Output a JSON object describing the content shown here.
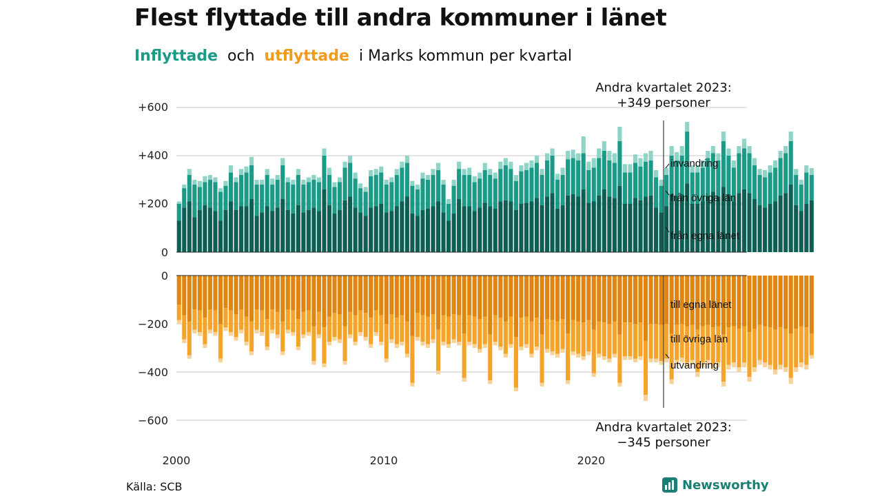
{
  "header": {
    "title": "Flest flyttade till andra kommuner i länet",
    "subtitle_in": "Inflyttade",
    "subtitle_and": "och",
    "subtitle_out": "utflyttade",
    "subtitle_rest": "i Marks kommun per kvartal"
  },
  "footer": {
    "source": "Källa: SCB",
    "brand": "Newsworthy"
  },
  "colors": {
    "in_own": "#0e5e53",
    "in_other": "#1b9a87",
    "in_immig": "#8fd4c6",
    "out_own": "#de8512",
    "out_other": "#f4a42a",
    "out_emig": "#f7d39a",
    "grid": "#dcdcdc",
    "brand": "#1a7f73"
  },
  "chart_data": {
    "type": "bar",
    "x_axis": {
      "start": "2000 Q1",
      "end": "2023 Q2",
      "ticks": [
        "2000",
        "2010",
        "2020"
      ]
    },
    "y_axis_top": {
      "ticks": [
        "+600",
        "+400",
        "+200",
        "0"
      ],
      "range": [
        0,
        600
      ]
    },
    "y_axis_bottom": {
      "ticks": [
        "0",
        "−200",
        "−400",
        "−600"
      ],
      "range": [
        -600,
        0
      ]
    },
    "annotations": {
      "top_line1": "Andra kvartalet 2023:",
      "top_line2": "+349 personer",
      "bottom_line1": "Andra kvartalet 2023:",
      "bottom_line2": "−345 personer"
    },
    "series_labels": {
      "in_immig": "invandring",
      "in_other": "från övriga län",
      "in_own": "från egna länet",
      "out_own": "till egna länet",
      "out_other": "till övriga län",
      "out_emig": "utvandring"
    },
    "in_totals": [
      210,
      280,
      345,
      300,
      295,
      315,
      320,
      310,
      265,
      295,
      360,
      310,
      345,
      355,
      395,
      300,
      300,
      345,
      305,
      320,
      390,
      310,
      300,
      345,
      300,
      310,
      320,
      310,
      430,
      350,
      290,
      310,
      375,
      400,
      330,
      285,
      270,
      340,
      345,
      355,
      300,
      310,
      345,
      375,
      400,
      295,
      280,
      330,
      320,
      345,
      370,
      300,
      220,
      300,
      375,
      345,
      350,
      315,
      330,
      370,
      345,
      330,
      375,
      390,
      375,
      320,
      360,
      370,
      380,
      400,
      345,
      410,
      430,
      325,
      350,
      420,
      425,
      410,
      480,
      375,
      390,
      430,
      460,
      420,
      410,
      520,
      365,
      365,
      405,
      390,
      410,
      420,
      340,
      300,
      350,
      440,
      415,
      440,
      540,
      360,
      360,
      380,
      420,
      440,
      410,
      500,
      430,
      380,
      440,
      470,
      440,
      390,
      345,
      340,
      360,
      380,
      420,
      440,
      500,
      345,
      300,
      360,
      349
    ],
    "in_other_tops": [
      200,
      265,
      320,
      280,
      270,
      290,
      300,
      290,
      250,
      275,
      330,
      290,
      320,
      330,
      360,
      280,
      280,
      320,
      280,
      300,
      360,
      290,
      280,
      320,
      280,
      290,
      300,
      290,
      400,
      320,
      270,
      290,
      350,
      370,
      305,
      265,
      250,
      315,
      320,
      330,
      280,
      290,
      320,
      350,
      370,
      275,
      260,
      305,
      300,
      320,
      340,
      280,
      200,
      275,
      345,
      320,
      320,
      290,
      305,
      340,
      320,
      305,
      345,
      360,
      345,
      295,
      335,
      340,
      350,
      370,
      320,
      380,
      400,
      300,
      320,
      385,
      390,
      380,
      410,
      340,
      350,
      390,
      420,
      380,
      370,
      460,
      330,
      330,
      370,
      355,
      375,
      380,
      310,
      275,
      320,
      400,
      380,
      400,
      500,
      330,
      330,
      350,
      390,
      410,
      380,
      460,
      400,
      350,
      410,
      430,
      410,
      360,
      320,
      310,
      330,
      350,
      390,
      410,
      460,
      320,
      280,
      330,
      320
    ],
    "in_own_values": [
      130,
      185,
      210,
      145,
      175,
      195,
      185,
      170,
      130,
      175,
      210,
      175,
      190,
      190,
      220,
      150,
      165,
      190,
      170,
      185,
      220,
      175,
      160,
      195,
      165,
      175,
      185,
      170,
      260,
      195,
      160,
      175,
      215,
      230,
      185,
      165,
      150,
      185,
      190,
      200,
      165,
      170,
      190,
      210,
      230,
      160,
      150,
      175,
      180,
      190,
      210,
      165,
      130,
      160,
      220,
      190,
      190,
      170,
      185,
      205,
      190,
      180,
      210,
      215,
      210,
      175,
      200,
      205,
      210,
      225,
      195,
      230,
      245,
      180,
      195,
      235,
      240,
      230,
      260,
      205,
      210,
      235,
      260,
      230,
      225,
      275,
      200,
      200,
      225,
      215,
      230,
      235,
      185,
      165,
      190,
      240,
      230,
      240,
      285,
      200,
      200,
      210,
      235,
      250,
      230,
      270,
      240,
      210,
      245,
      260,
      245,
      220,
      195,
      185,
      200,
      210,
      235,
      245,
      280,
      195,
      170,
      200,
      215
    ],
    "out_totals": [
      -200,
      -280,
      -345,
      -240,
      -250,
      -300,
      -240,
      -250,
      -360,
      -230,
      -250,
      -270,
      -240,
      -290,
      -330,
      -240,
      -250,
      -310,
      -240,
      -260,
      -330,
      -240,
      -250,
      -310,
      -260,
      -250,
      -370,
      -260,
      -380,
      -290,
      -270,
      -280,
      -370,
      -260,
      -290,
      -250,
      -270,
      -300,
      -250,
      -290,
      -360,
      -280,
      -300,
      -290,
      -340,
      -460,
      -270,
      -290,
      -300,
      -280,
      -410,
      -290,
      -300,
      -280,
      -290,
      -440,
      -290,
      -300,
      -320,
      -300,
      -450,
      -290,
      -310,
      -340,
      -300,
      -480,
      -310,
      -300,
      -340,
      -310,
      -460,
      -320,
      -330,
      -340,
      -320,
      -450,
      -330,
      -340,
      -350,
      -330,
      -420,
      -340,
      -350,
      -360,
      -340,
      -460,
      -350,
      -350,
      -360,
      -350,
      -520,
      -360,
      -360,
      -370,
      -360,
      -450,
      -370,
      -360,
      -380,
      -370,
      -420,
      -380,
      -370,
      -390,
      -380,
      -460,
      -390,
      -380,
      -400,
      -380,
      -440,
      -400,
      -370,
      -380,
      -390,
      -410,
      -390,
      -400,
      -450,
      -400,
      -380,
      -390,
      -345
    ],
    "out_other_bottoms": [
      -185,
      -265,
      -330,
      -225,
      -235,
      -285,
      -225,
      -235,
      -345,
      -215,
      -235,
      -255,
      -225,
      -275,
      -315,
      -225,
      -235,
      -295,
      -225,
      -245,
      -315,
      -225,
      -235,
      -295,
      -245,
      -235,
      -355,
      -245,
      -365,
      -275,
      -255,
      -265,
      -355,
      -245,
      -275,
      -235,
      -255,
      -285,
      -235,
      -275,
      -345,
      -265,
      -285,
      -275,
      -325,
      -445,
      -255,
      -275,
      -285,
      -265,
      -395,
      -275,
      -285,
      -265,
      -275,
      -425,
      -275,
      -285,
      -305,
      -285,
      -435,
      -275,
      -295,
      -325,
      -285,
      -465,
      -295,
      -285,
      -325,
      -295,
      -445,
      -305,
      -315,
      -325,
      -305,
      -435,
      -315,
      -325,
      -335,
      -315,
      -405,
      -325,
      -335,
      -345,
      -325,
      -445,
      -335,
      -335,
      -345,
      -335,
      -495,
      -345,
      -345,
      -355,
      -345,
      -430,
      -350,
      -340,
      -360,
      -350,
      -400,
      -360,
      -350,
      -370,
      -360,
      -440,
      -370,
      -360,
      -380,
      -360,
      -420,
      -380,
      -350,
      -360,
      -370,
      -390,
      -370,
      -380,
      -425,
      -380,
      -360,
      -370,
      -330
    ],
    "out_own_values": [
      -120,
      -165,
      -190,
      -140,
      -145,
      -175,
      -140,
      -145,
      -200,
      -135,
      -145,
      -160,
      -140,
      -170,
      -190,
      -140,
      -145,
      -180,
      -140,
      -150,
      -190,
      -140,
      -145,
      -180,
      -150,
      -145,
      -210,
      -150,
      -215,
      -170,
      -155,
      -160,
      -210,
      -150,
      -165,
      -145,
      -155,
      -175,
      -145,
      -165,
      -200,
      -160,
      -175,
      -165,
      -190,
      -250,
      -155,
      -165,
      -170,
      -160,
      -225,
      -165,
      -170,
      -160,
      -165,
      -240,
      -165,
      -170,
      -180,
      -170,
      -245,
      -165,
      -175,
      -190,
      -170,
      -255,
      -175,
      -170,
      -190,
      -175,
      -245,
      -180,
      -185,
      -190,
      -180,
      -240,
      -185,
      -190,
      -195,
      -185,
      -225,
      -190,
      -195,
      -200,
      -190,
      -245,
      -195,
      -195,
      -200,
      -195,
      -270,
      -200,
      -200,
      -205,
      -200,
      -240,
      -205,
      -200,
      -210,
      -205,
      -225,
      -210,
      -205,
      -215,
      -210,
      -245,
      -215,
      -210,
      -220,
      -210,
      -235,
      -220,
      -205,
      -210,
      -215,
      -225,
      -215,
      -220,
      -240,
      -220,
      -210,
      -215,
      -240
    ]
  }
}
